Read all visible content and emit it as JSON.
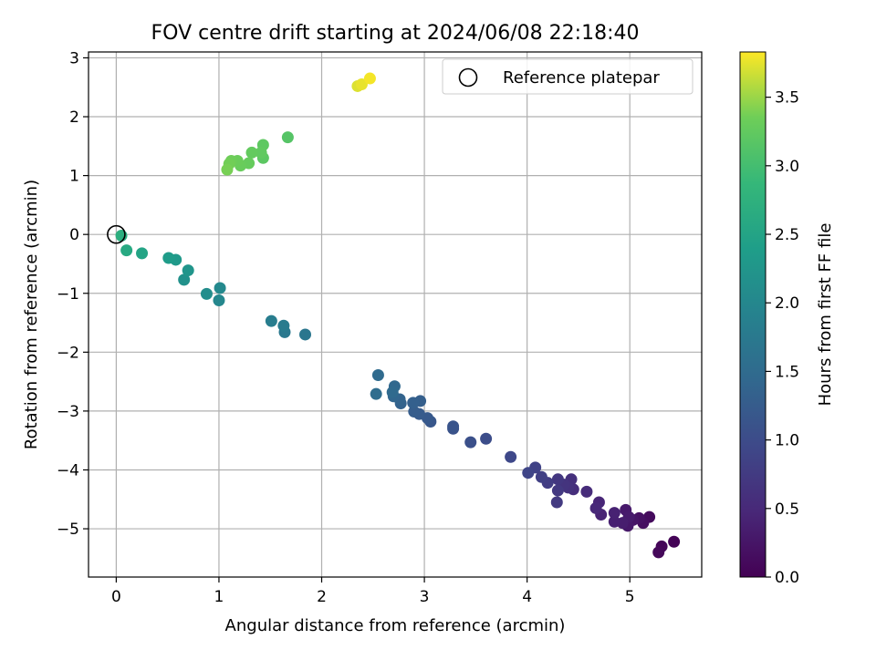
{
  "chart_data": {
    "type": "scatter",
    "title": "FOV centre drift starting at 2024/06/08 22:18:40",
    "xlabel": "Angular distance from reference (arcmin)",
    "ylabel": "Rotation from reference (arcmin)",
    "xlim": [
      -0.27,
      5.7
    ],
    "ylim": [
      -5.82,
      3.1
    ],
    "xticks": [
      0,
      1,
      2,
      3,
      4,
      5
    ],
    "yticks": [
      -5,
      -4,
      -3,
      -2,
      -1,
      0,
      1,
      2,
      3
    ],
    "xtick_labels": [
      "0",
      "1",
      "2",
      "3",
      "4",
      "5"
    ],
    "ytick_labels": [
      "−5",
      "−4",
      "−3",
      "−2",
      "−1",
      "0",
      "1",
      "2",
      "3"
    ],
    "grid": true,
    "legend": {
      "location": "upper right",
      "entries": [
        "Reference platepar"
      ]
    },
    "reference_point": {
      "x": 0,
      "y": 0,
      "marker": "open-circle"
    },
    "colorbar": {
      "label": "Hours from first FF file",
      "colormap": "viridis",
      "range": [
        0,
        3.83
      ],
      "ticks": [
        0.0,
        0.5,
        1.0,
        1.5,
        2.0,
        2.5,
        3.0,
        3.5
      ],
      "tick_labels": [
        "0.0",
        "0.5",
        "1.0",
        "1.5",
        "2.0",
        "2.5",
        "3.0",
        "3.5"
      ]
    },
    "points": [
      {
        "x": 5.43,
        "y": -5.22,
        "t": 0.02
      },
      {
        "x": 5.31,
        "y": -5.3,
        "t": 0.05
      },
      {
        "x": 5.28,
        "y": -5.4,
        "t": 0.08
      },
      {
        "x": 5.19,
        "y": -4.8,
        "t": 0.12
      },
      {
        "x": 5.13,
        "y": -4.9,
        "t": 0.16
      },
      {
        "x": 5.09,
        "y": -4.82,
        "t": 0.2
      },
      {
        "x": 5.03,
        "y": -4.85,
        "t": 0.24
      },
      {
        "x": 4.98,
        "y": -4.95,
        "t": 0.28
      },
      {
        "x": 4.96,
        "y": -4.68,
        "t": 0.3
      },
      {
        "x": 4.99,
        "y": -4.8,
        "t": 0.32
      },
      {
        "x": 4.93,
        "y": -4.9,
        "t": 0.35
      },
      {
        "x": 4.85,
        "y": -4.88,
        "t": 0.38
      },
      {
        "x": 4.85,
        "y": -4.73,
        "t": 0.4
      },
      {
        "x": 4.72,
        "y": -4.76,
        "t": 0.43
      },
      {
        "x": 4.7,
        "y": -4.55,
        "t": 0.46
      },
      {
        "x": 4.67,
        "y": -4.65,
        "t": 0.5
      },
      {
        "x": 4.58,
        "y": -4.37,
        "t": 0.53
      },
      {
        "x": 4.45,
        "y": -4.33,
        "t": 0.56
      },
      {
        "x": 4.43,
        "y": -4.16,
        "t": 0.6
      },
      {
        "x": 4.4,
        "y": -4.3,
        "t": 0.63
      },
      {
        "x": 4.36,
        "y": -4.25,
        "t": 0.66
      },
      {
        "x": 4.3,
        "y": -4.16,
        "t": 0.7
      },
      {
        "x": 4.3,
        "y": -4.35,
        "t": 0.72
      },
      {
        "x": 4.29,
        "y": -4.55,
        "t": 0.74
      },
      {
        "x": 4.2,
        "y": -4.22,
        "t": 0.78
      },
      {
        "x": 4.14,
        "y": -4.12,
        "t": 0.82
      },
      {
        "x": 4.08,
        "y": -3.96,
        "t": 0.86
      },
      {
        "x": 4.01,
        "y": -4.05,
        "t": 0.9
      },
      {
        "x": 3.84,
        "y": -3.78,
        "t": 0.95
      },
      {
        "x": 3.6,
        "y": -3.47,
        "t": 1.02
      },
      {
        "x": 3.45,
        "y": -3.53,
        "t": 1.06
      },
      {
        "x": 3.28,
        "y": -3.3,
        "t": 1.1
      },
      {
        "x": 3.28,
        "y": -3.26,
        "t": 1.13
      },
      {
        "x": 3.06,
        "y": -3.18,
        "t": 1.17
      },
      {
        "x": 3.03,
        "y": -3.12,
        "t": 1.2
      },
      {
        "x": 2.95,
        "y": -3.05,
        "t": 1.23
      },
      {
        "x": 2.9,
        "y": -3.01,
        "t": 1.26
      },
      {
        "x": 2.96,
        "y": -2.83,
        "t": 1.29
      },
      {
        "x": 2.89,
        "y": -2.86,
        "t": 1.32
      },
      {
        "x": 2.77,
        "y": -2.87,
        "t": 1.35
      },
      {
        "x": 2.76,
        "y": -2.8,
        "t": 1.38
      },
      {
        "x": 2.7,
        "y": -2.75,
        "t": 1.41
      },
      {
        "x": 2.71,
        "y": -2.58,
        "t": 1.44
      },
      {
        "x": 2.69,
        "y": -2.68,
        "t": 1.47
      },
      {
        "x": 2.55,
        "y": -2.39,
        "t": 1.5
      },
      {
        "x": 2.53,
        "y": -2.71,
        "t": 1.53
      },
      {
        "x": 1.84,
        "y": -1.7,
        "t": 1.7
      },
      {
        "x": 1.64,
        "y": -1.66,
        "t": 1.74
      },
      {
        "x": 1.63,
        "y": -1.55,
        "t": 1.78
      },
      {
        "x": 1.51,
        "y": -1.47,
        "t": 1.82
      },
      {
        "x": 1.0,
        "y": -1.12,
        "t": 2.0
      },
      {
        "x": 1.01,
        "y": -0.91,
        "t": 2.04
      },
      {
        "x": 0.88,
        "y": -1.01,
        "t": 2.1
      },
      {
        "x": 0.66,
        "y": -0.77,
        "t": 2.18
      },
      {
        "x": 0.7,
        "y": -0.61,
        "t": 2.24
      },
      {
        "x": 0.58,
        "y": -0.43,
        "t": 2.3
      },
      {
        "x": 0.51,
        "y": -0.4,
        "t": 2.36
      },
      {
        "x": 0.25,
        "y": -0.32,
        "t": 2.5
      },
      {
        "x": 0.1,
        "y": -0.27,
        "t": 2.6
      },
      {
        "x": 0.05,
        "y": -0.02,
        "t": 2.7
      },
      {
        "x": 1.67,
        "y": 1.65,
        "t": 3.15
      },
      {
        "x": 1.43,
        "y": 1.3,
        "t": 3.2
      },
      {
        "x": 1.43,
        "y": 1.52,
        "t": 3.22
      },
      {
        "x": 1.41,
        "y": 1.39,
        "t": 3.24
      },
      {
        "x": 1.32,
        "y": 1.39,
        "t": 3.26
      },
      {
        "x": 1.29,
        "y": 1.21,
        "t": 3.28
      },
      {
        "x": 1.21,
        "y": 1.17,
        "t": 3.3
      },
      {
        "x": 1.18,
        "y": 1.25,
        "t": 3.32
      },
      {
        "x": 1.12,
        "y": 1.25,
        "t": 3.34
      },
      {
        "x": 1.1,
        "y": 1.2,
        "t": 3.36
      },
      {
        "x": 1.08,
        "y": 1.1,
        "t": 3.38
      },
      {
        "x": 2.35,
        "y": 2.52,
        "t": 3.72
      },
      {
        "x": 2.39,
        "y": 2.55,
        "t": 3.76
      },
      {
        "x": 2.47,
        "y": 2.65,
        "t": 3.8
      }
    ]
  }
}
